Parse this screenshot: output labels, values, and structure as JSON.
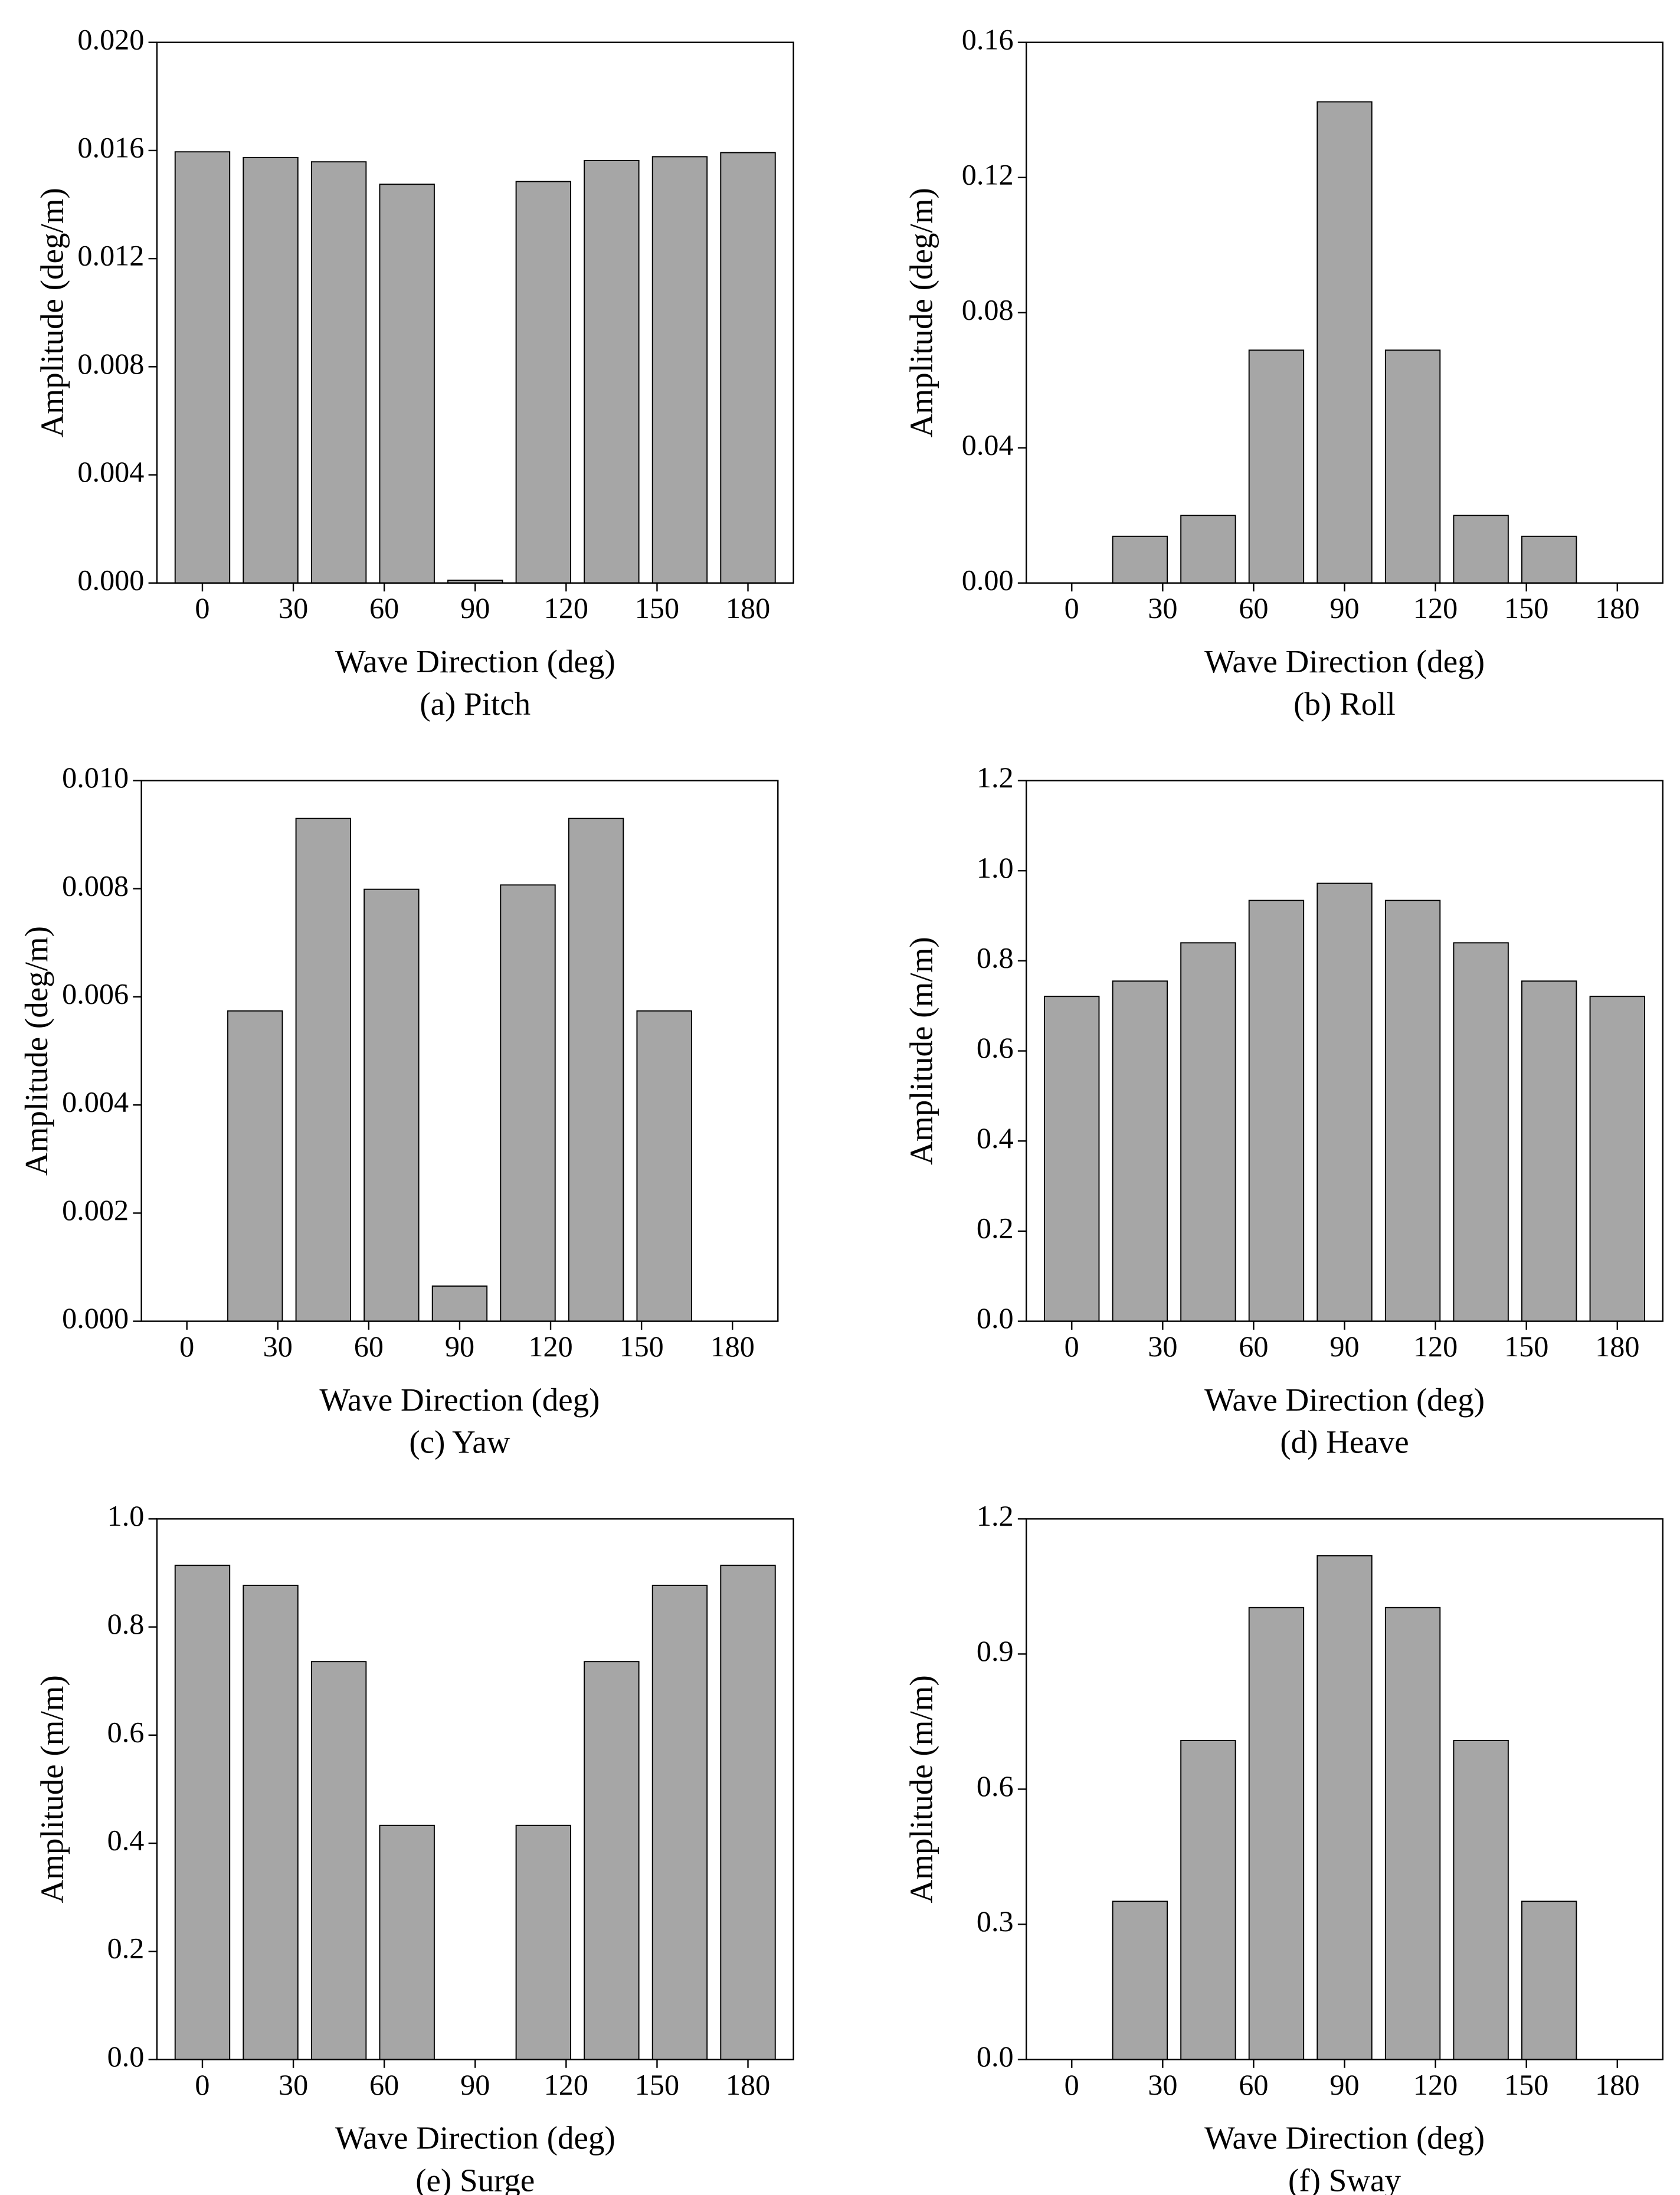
{
  "chart_data": [
    {
      "type": "bar",
      "caption": "(a) Pitch",
      "xlabel": "Wave Direction (deg)",
      "ylabel": "Amplitude (deg/m)",
      "x": [
        0,
        22.5,
        45,
        67.5,
        90,
        112.5,
        135,
        157.5,
        180
      ],
      "values": [
        0.01595,
        0.01574,
        0.01558,
        0.01475,
        0.0001,
        0.01485,
        0.01563,
        0.01577,
        0.01592
      ],
      "color": "#a6a6a6",
      "xlim": [
        -15,
        195
      ],
      "xticks": [
        0,
        30,
        60,
        90,
        120,
        150,
        180
      ],
      "ylim": [
        0,
        0.02
      ],
      "yticks": [
        {
          "value": 0,
          "label": "0.000"
        },
        {
          "value": 0.004,
          "label": "0.004"
        },
        {
          "value": 0.008,
          "label": "0.008"
        },
        {
          "value": 0.012,
          "label": "0.012"
        },
        {
          "value": 0.016,
          "label": "0.016"
        },
        {
          "value": 0.02,
          "label": "0.020"
        }
      ]
    },
    {
      "type": "bar",
      "caption": "(b) Roll",
      "xlabel": "Wave Direction (deg)",
      "ylabel": "Amplitude (deg/m)",
      "x": [
        0,
        22.5,
        45,
        67.5,
        90,
        112.5,
        135,
        157.5,
        180
      ],
      "values": [
        0,
        0.0138,
        0.02,
        0.0689,
        0.1424,
        0.0689,
        0.02,
        0.0138,
        0
      ],
      "color": "#a6a6a6",
      "xlim": [
        -15,
        195
      ],
      "xticks": [
        0,
        30,
        60,
        90,
        120,
        150,
        180
      ],
      "ylim": [
        0,
        0.16
      ],
      "yticks": [
        {
          "value": 0,
          "label": "0.00"
        },
        {
          "value": 0.04,
          "label": "0.04"
        },
        {
          "value": 0.08,
          "label": "0.08"
        },
        {
          "value": 0.12,
          "label": "0.12"
        },
        {
          "value": 0.16,
          "label": "0.16"
        }
      ]
    },
    {
      "type": "bar",
      "caption": "(c) Yaw",
      "xlabel": "Wave Direction (deg)",
      "ylabel": "Amplitude (deg/m)",
      "x": [
        0,
        22.5,
        45,
        67.5,
        90,
        112.5,
        135,
        157.5,
        180
      ],
      "values": [
        0,
        0.00574,
        0.0093,
        0.00799,
        0.00065,
        0.00807,
        0.0093,
        0.00574,
        0
      ],
      "color": "#a6a6a6",
      "xlim": [
        -15,
        195
      ],
      "xticks": [
        0,
        30,
        60,
        90,
        120,
        150,
        180
      ],
      "ylim": [
        0,
        0.01
      ],
      "yticks": [
        {
          "value": 0,
          "label": "0.000"
        },
        {
          "value": 0.002,
          "label": "0.002"
        },
        {
          "value": 0.004,
          "label": "0.004"
        },
        {
          "value": 0.006,
          "label": "0.006"
        },
        {
          "value": 0.008,
          "label": "0.008"
        },
        {
          "value": 0.01,
          "label": "0.010"
        }
      ]
    },
    {
      "type": "bar",
      "caption": "(d) Heave",
      "xlabel": "Wave Direction (deg)",
      "ylabel": "Amplitude (m/m)",
      "x": [
        0,
        22.5,
        45,
        67.5,
        90,
        112.5,
        135,
        157.5,
        180
      ],
      "values": [
        0.721,
        0.755,
        0.84,
        0.934,
        0.972,
        0.934,
        0.84,
        0.755,
        0.721
      ],
      "color": "#a6a6a6",
      "xlim": [
        -15,
        195
      ],
      "xticks": [
        0,
        30,
        60,
        90,
        120,
        150,
        180
      ],
      "ylim": [
        0,
        1.2
      ],
      "yticks": [
        {
          "value": 0,
          "label": "0.0"
        },
        {
          "value": 0.2,
          "label": "0.2"
        },
        {
          "value": 0.4,
          "label": "0.4"
        },
        {
          "value": 0.6,
          "label": "0.6"
        },
        {
          "value": 0.8,
          "label": "0.8"
        },
        {
          "value": 1,
          "label": "1.0"
        },
        {
          "value": 1.2,
          "label": "1.2"
        }
      ]
    },
    {
      "type": "bar",
      "caption": "(e) Surge",
      "xlabel": "Wave Direction (deg)",
      "ylabel": "Amplitude (m/m)",
      "x": [
        0,
        22.5,
        45,
        67.5,
        90,
        112.5,
        135,
        157.5,
        180
      ],
      "values": [
        0.914,
        0.877,
        0.736,
        0.433,
        0,
        0.433,
        0.736,
        0.877,
        0.914
      ],
      "color": "#a6a6a6",
      "xlim": [
        -15,
        195
      ],
      "xticks": [
        0,
        30,
        60,
        90,
        120,
        150,
        180
      ],
      "ylim": [
        0,
        1
      ],
      "yticks": [
        {
          "value": 0,
          "label": "0.0"
        },
        {
          "value": 0.2,
          "label": "0.2"
        },
        {
          "value": 0.4,
          "label": "0.4"
        },
        {
          "value": 0.6,
          "label": "0.6"
        },
        {
          "value": 0.8,
          "label": "0.8"
        },
        {
          "value": 1,
          "label": "1.0"
        }
      ]
    },
    {
      "type": "bar",
      "caption": "(f) Sway",
      "xlabel": "Wave Direction (deg)",
      "ylabel": "Amplitude (m/m)",
      "x": [
        0,
        22.5,
        45,
        67.5,
        90,
        112.5,
        135,
        157.5,
        180
      ],
      "values": [
        0,
        0.351,
        0.708,
        1.003,
        1.118,
        1.003,
        0.708,
        0.351,
        0
      ],
      "color": "#a6a6a6",
      "xlim": [
        -15,
        195
      ],
      "xticks": [
        0,
        30,
        60,
        90,
        120,
        150,
        180
      ],
      "ylim": [
        0,
        1.2
      ],
      "yticks": [
        {
          "value": 0,
          "label": "0.0"
        },
        {
          "value": 0.3,
          "label": "0.3"
        },
        {
          "value": 0.6,
          "label": "0.6"
        },
        {
          "value": 0.9,
          "label": "0.9"
        },
        {
          "value": 1.2,
          "label": "1.2"
        }
      ]
    }
  ]
}
